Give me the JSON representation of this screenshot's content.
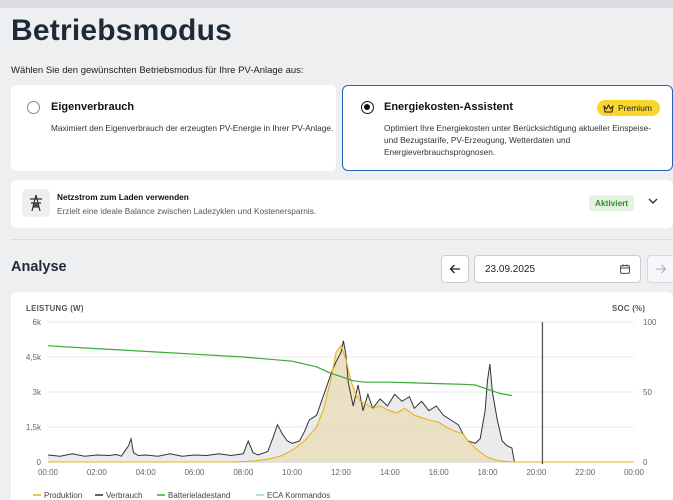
{
  "page": {
    "title": "Betriebsmodus",
    "subtitle": "Wählen Sie den gewünschten Betriebsmodus für Ihre PV-Anlage aus:"
  },
  "modes": [
    {
      "title": "Eigenverbrauch",
      "description": "Maximiert den Eigenverbrauch der erzeugten PV-Energie in Ihrer PV-Anlage.",
      "selected": false
    },
    {
      "title": "Energiekosten-Assistent",
      "description_lines": [
        "Optimiert Ihre Energiekosten unter Berücksichtigung aktueller Einspeise-",
        "und Bezugstarife, PV-Erzeugung, Wetterdaten und",
        "Energieverbrauchsprognosen."
      ],
      "badge": "Premium",
      "selected": true
    }
  ],
  "grid_option": {
    "title": "Netzstrom zum Laden verwenden",
    "description": "Erzielt eine ideale Balance zwischen Ladezyklen und Kostenersparnis.",
    "status": "Aktiviert"
  },
  "analysis": {
    "title": "Analyse",
    "date": "23.09.2025"
  },
  "colors": {
    "accent": "#2563b8",
    "premium": "#fbd62a",
    "produktion": "#e8b21c",
    "verbrauch": "#333333",
    "batterie": "#3aa935",
    "eca": "#9fd3e6"
  },
  "chart_data": {
    "type": "line",
    "ylabel_left": "LEISTUNG (W)",
    "ylabel_right": "SOC (%)",
    "y_left_ticks": [
      "0",
      "1,5k",
      "3k",
      "4,5k",
      "6k"
    ],
    "y_right_ticks": [
      "0",
      "50",
      "100"
    ],
    "ylim_left": [
      0,
      6000
    ],
    "ylim_right": [
      0,
      100
    ],
    "x_ticks": [
      "00:00",
      "02:00",
      "04:00",
      "06:00",
      "08:00",
      "10:00",
      "12:00",
      "14:00",
      "16:00",
      "18:00",
      "20:00",
      "22:00",
      "00:00"
    ],
    "xlim_hours": [
      0,
      24
    ],
    "now_marker_hour": 20.25,
    "legend": [
      "Produktion",
      "Verbrauch",
      "Batterieladestand",
      "ECA Kommandos"
    ],
    "series": [
      {
        "name": "Produktion",
        "axis": "left",
        "points": [
          [
            0,
            0
          ],
          [
            7.5,
            0
          ],
          [
            8,
            20
          ],
          [
            8.5,
            50
          ],
          [
            9,
            120
          ],
          [
            9.5,
            250
          ],
          [
            10,
            500
          ],
          [
            10.5,
            900
          ],
          [
            11,
            1500
          ],
          [
            11.3,
            2300
          ],
          [
            11.6,
            3600
          ],
          [
            11.8,
            4700
          ],
          [
            12.0,
            5000
          ],
          [
            12.2,
            4400
          ],
          [
            12.4,
            3500
          ],
          [
            12.6,
            2900
          ],
          [
            12.8,
            2600
          ],
          [
            13.0,
            2500
          ],
          [
            13.3,
            2300
          ],
          [
            13.6,
            2400
          ],
          [
            14.0,
            2200
          ],
          [
            14.3,
            2100
          ],
          [
            14.6,
            2300
          ],
          [
            15.0,
            2000
          ],
          [
            15.3,
            1900
          ],
          [
            15.6,
            1800
          ],
          [
            16.0,
            1700
          ],
          [
            16.3,
            1500
          ],
          [
            16.6,
            1350
          ],
          [
            17.0,
            1200
          ],
          [
            17.2,
            900
          ],
          [
            17.5,
            600
          ],
          [
            17.8,
            350
          ],
          [
            18.0,
            200
          ],
          [
            18.3,
            100
          ],
          [
            18.5,
            50
          ],
          [
            18.8,
            20
          ],
          [
            19,
            0
          ],
          [
            24,
            0
          ]
        ]
      },
      {
        "name": "Verbrauch",
        "axis": "left",
        "points": [
          [
            0,
            300
          ],
          [
            0.5,
            250
          ],
          [
            1.0,
            350
          ],
          [
            1.5,
            250
          ],
          [
            2.0,
            300
          ],
          [
            2.5,
            280
          ],
          [
            2.8,
            320
          ],
          [
            3.0,
            250
          ],
          [
            3.3,
            700
          ],
          [
            3.4,
            1000
          ],
          [
            3.5,
            400
          ],
          [
            3.7,
            280
          ],
          [
            4.0,
            300
          ],
          [
            4.5,
            250
          ],
          [
            5.0,
            350
          ],
          [
            5.5,
            250
          ],
          [
            6.0,
            300
          ],
          [
            6.5,
            280
          ],
          [
            7.0,
            350
          ],
          [
            7.5,
            280
          ],
          [
            8.0,
            350
          ],
          [
            8.2,
            900
          ],
          [
            8.4,
            400
          ],
          [
            8.6,
            300
          ],
          [
            9.0,
            450
          ],
          [
            9.2,
            1000
          ],
          [
            9.4,
            1600
          ],
          [
            9.6,
            1200
          ],
          [
            9.8,
            900
          ],
          [
            10.0,
            800
          ],
          [
            10.3,
            900
          ],
          [
            10.5,
            1300
          ],
          [
            10.7,
            1800
          ],
          [
            11.0,
            2000
          ],
          [
            11.2,
            2600
          ],
          [
            11.4,
            3200
          ],
          [
            11.6,
            3800
          ],
          [
            11.8,
            4300
          ],
          [
            12.0,
            4700
          ],
          [
            12.1,
            5200
          ],
          [
            12.2,
            4600
          ],
          [
            12.3,
            3400
          ],
          [
            12.5,
            2400
          ],
          [
            12.7,
            3300
          ],
          [
            12.9,
            2200
          ],
          [
            13.1,
            2900
          ],
          [
            13.3,
            2300
          ],
          [
            13.6,
            2700
          ],
          [
            13.9,
            2400
          ],
          [
            14.2,
            2900
          ],
          [
            14.5,
            2600
          ],
          [
            14.8,
            2800
          ],
          [
            15.0,
            2300
          ],
          [
            15.3,
            2600
          ],
          [
            15.6,
            2200
          ],
          [
            15.9,
            2400
          ],
          [
            16.2,
            2000
          ],
          [
            16.5,
            1800
          ],
          [
            16.8,
            1600
          ],
          [
            17.0,
            1200
          ],
          [
            17.2,
            900
          ],
          [
            17.5,
            800
          ],
          [
            17.7,
            1000
          ],
          [
            17.9,
            2200
          ],
          [
            18.0,
            3500
          ],
          [
            18.1,
            4200
          ],
          [
            18.2,
            3000
          ],
          [
            18.4,
            1800
          ],
          [
            18.6,
            900
          ],
          [
            18.8,
            700
          ],
          [
            19.0,
            600
          ],
          [
            19.1,
            0
          ],
          [
            24,
            0
          ]
        ]
      },
      {
        "name": "Batterieladestand",
        "axis": "right",
        "points": [
          [
            0,
            83
          ],
          [
            2,
            81
          ],
          [
            4,
            79
          ],
          [
            6,
            77
          ],
          [
            8,
            75
          ],
          [
            10,
            72
          ],
          [
            11,
            68
          ],
          [
            11.5,
            64
          ],
          [
            12,
            61
          ],
          [
            12.5,
            58
          ],
          [
            13,
            57
          ],
          [
            14,
            57
          ],
          [
            15,
            56.5
          ],
          [
            16,
            56
          ],
          [
            17,
            55.5
          ],
          [
            17.5,
            55
          ],
          [
            18,
            52
          ],
          [
            18.5,
            49
          ],
          [
            19,
            47.5
          ]
        ]
      },
      {
        "name": "ECA Kommandos",
        "axis": "right",
        "points": []
      }
    ]
  }
}
